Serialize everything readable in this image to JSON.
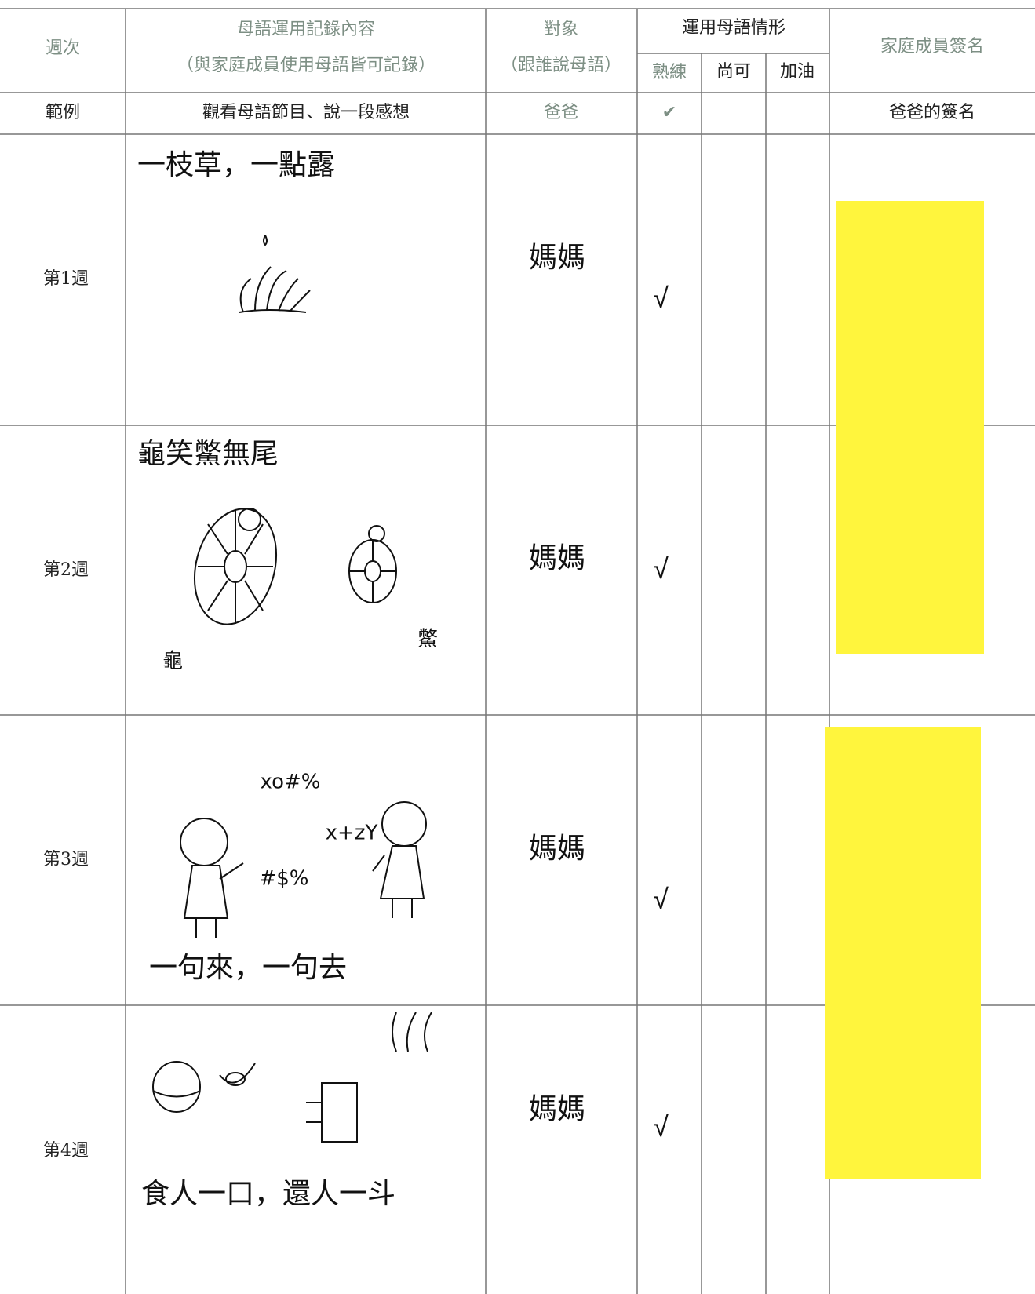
{
  "header": {
    "week": "週次",
    "content": "母語運用記錄內容",
    "content_note": "（與家庭成員使用母語皆可記錄）",
    "partner": "對象",
    "partner_note": "（跟誰說母語）",
    "usage": "運用母語情形",
    "levels": [
      "熟練",
      "尚可",
      "加油"
    ],
    "signature": "家庭成員簽名"
  },
  "example": {
    "week": "範例",
    "content": "觀看母語節目、說一段感想",
    "partner": "爸爸",
    "check": "✔",
    "signature": "爸爸的簽名"
  },
  "rows": [
    {
      "week": "第1週",
      "content": "一枝草，一點露",
      "labels": [],
      "partner": "媽媽",
      "check": "√"
    },
    {
      "week": "第2週",
      "content": "龜笑鱉無尾",
      "labels": [
        "龜",
        "鱉"
      ],
      "partner": "媽媽",
      "check": "√"
    },
    {
      "week": "第3週",
      "content": "一句來，一句去",
      "labels": [
        "xo#%",
        "x+zY",
        "#$%"
      ],
      "partner": "媽媽",
      "check": "√"
    },
    {
      "week": "第4週",
      "content": "食人一口，還人一斗",
      "labels": [],
      "partner": "媽媽",
      "check": "√"
    }
  ]
}
